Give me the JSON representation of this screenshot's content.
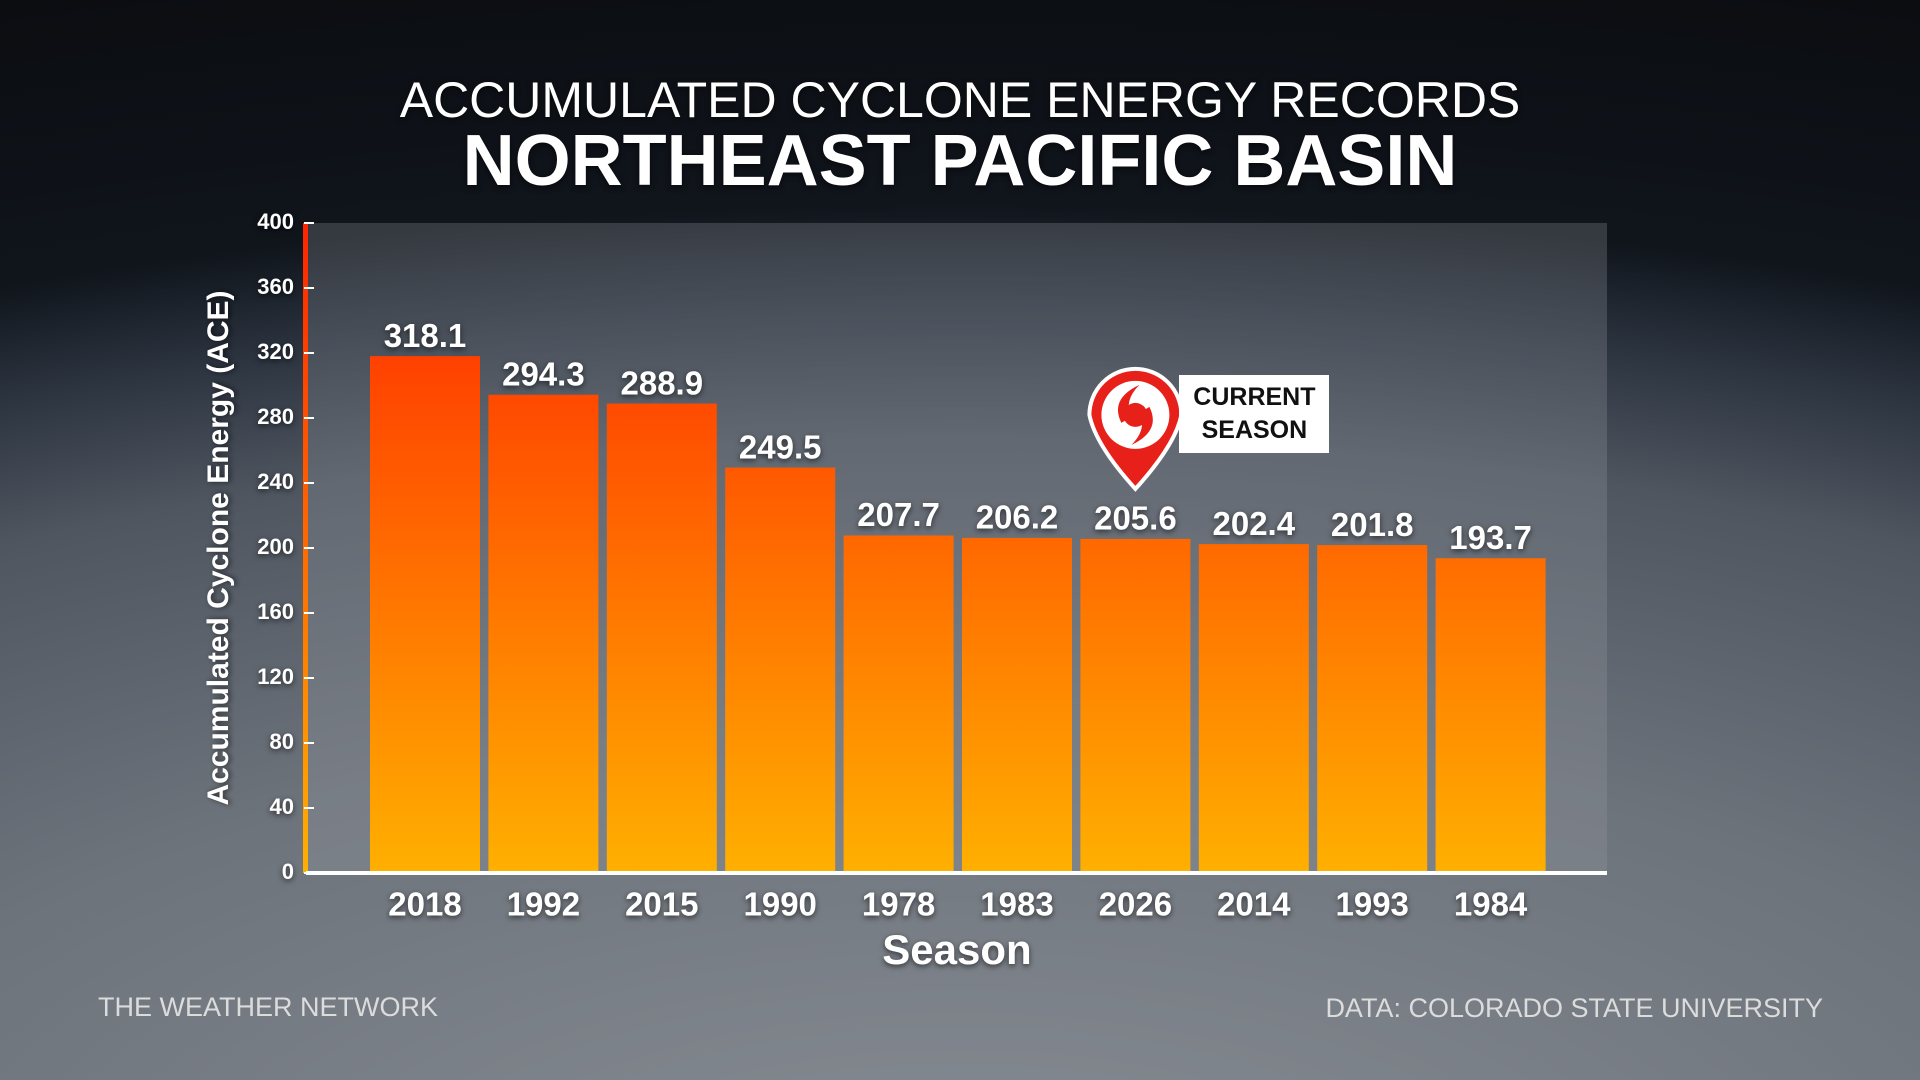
{
  "chart_data": {
    "type": "bar",
    "title": "ACCUMULATED CYCLONE ENERGY RECORDS",
    "subtitle": "NORTHEAST PACIFIC BASIN",
    "y_label": "Accumulated Cyclone Energy (ACE)",
    "x_label": "Season",
    "categories": [
      "2018",
      "1992",
      "2015",
      "1990",
      "1978",
      "1983",
      "2026",
      "2014",
      "1993",
      "1984"
    ],
    "values": [
      318.1,
      294.3,
      288.9,
      249.5,
      207.7,
      206.2,
      205.6,
      202.4,
      201.8,
      193.7
    ],
    "gradient": [
      "#ff2400",
      "#ffb000"
    ],
    "ylim": [
      0,
      400
    ],
    "yticks": [
      0,
      40,
      80,
      120,
      160,
      200,
      240,
      280,
      320,
      360,
      400
    ],
    "grid": false,
    "annotation": {
      "text": "CURRENT SEASON",
      "category": "2026"
    },
    "footer_left": "THE WEATHER NETWORK",
    "footer_right": "DATA: COLORADO STATE UNIVERSITY"
  }
}
